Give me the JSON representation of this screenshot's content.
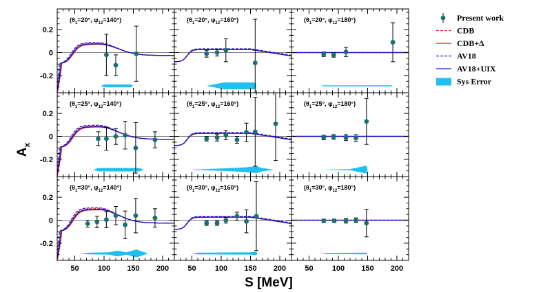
{
  "chart_data": {
    "type": "scatter",
    "xlabel": "S [MeV]",
    "ylabel": "A",
    "ylabel_subscript": "x",
    "xlim": [
      20,
      220
    ],
    "ylim": [
      -0.35,
      0.38
    ],
    "x_ticks": [
      50,
      100,
      150,
      200
    ],
    "y_ticks": [
      -0.2,
      0,
      0.2
    ],
    "x_tick_labels": [
      "50",
      "100",
      "150",
      "200"
    ],
    "y_tick_labels": [
      "-0.2",
      "0",
      "0.2"
    ],
    "legend": [
      {
        "name": "Present work",
        "style": "marker",
        "color": "#1a7070"
      },
      {
        "name": "CDB",
        "style": "dashed",
        "color": "#e02020"
      },
      {
        "name": "CDB+Δ",
        "style": "solid",
        "color": "#e02020"
      },
      {
        "name": "AV18",
        "style": "dashed",
        "color": "#1a1acc"
      },
      {
        "name": "AV18+UIX",
        "style": "solid",
        "color": "#1a1acc"
      },
      {
        "name": "Sys Error",
        "style": "fill",
        "color": "#1ec0f0"
      }
    ],
    "panels": [
      {
        "row": 0,
        "col": 0,
        "theta": "20",
        "phi": "140",
        "label_pre": "(θ",
        "label_mid": "=20°, φ",
        "label_post": "=140°)",
        "points": [
          {
            "x": 104,
            "y": -0.02,
            "err": 0.18
          },
          {
            "x": 120,
            "y": -0.11,
            "err": 0.09
          },
          {
            "x": 155,
            "y": -0.01,
            "err": 0.24
          }
        ],
        "sys": [
          [
            95,
            0.0
          ],
          [
            100,
            0.025
          ],
          [
            145,
            0.025
          ],
          [
            150,
            0.0
          ]
        ],
        "curves": {
          "type": "hump",
          "amp": 0.08
        }
      },
      {
        "row": 0,
        "col": 1,
        "theta": "20",
        "phi": "160",
        "label_pre": "(θ",
        "label_mid": "=20°, φ",
        "label_post": "=160°)",
        "points": [
          {
            "x": 75,
            "y": -0.01,
            "err": 0.03
          },
          {
            "x": 93,
            "y": 0.0,
            "err": 0.03
          },
          {
            "x": 108,
            "y": 0.02,
            "err": 0.1
          },
          {
            "x": 158,
            "y": -0.09,
            "err": 0.38
          }
        ],
        "sys": [
          [
            75,
            0.0
          ],
          [
            80,
            0.01
          ],
          [
            105,
            0.06
          ],
          [
            150,
            0.06
          ],
          [
            158,
            0.06
          ],
          [
            160,
            0.0
          ]
        ],
        "curves": {
          "type": "flat",
          "amp": 0.03
        }
      },
      {
        "row": 0,
        "col": 2,
        "theta": "20",
        "phi": "180",
        "label_pre": "(θ",
        "label_mid": "=20°, φ",
        "label_post": "=180°)",
        "points": [
          {
            "x": 75,
            "y": -0.015,
            "err": 0.02
          },
          {
            "x": 92,
            "y": -0.02,
            "err": 0.02
          },
          {
            "x": 113,
            "y": 0.005,
            "err": 0.04
          },
          {
            "x": 193,
            "y": 0.09,
            "err": 0.17
          }
        ],
        "sys": [
          [
            70,
            0.0
          ],
          [
            75,
            0.008
          ],
          [
            190,
            0.01
          ],
          [
            193,
            0.0
          ]
        ],
        "curves": {
          "type": "zero",
          "amp": 0.0
        }
      },
      {
        "row": 1,
        "col": 0,
        "theta": "25",
        "phi": "140",
        "label_pre": "(θ",
        "label_mid": "=25°, φ",
        "label_post": "=140°)",
        "points": [
          {
            "x": 90,
            "y": -0.02,
            "err": 0.06
          },
          {
            "x": 104,
            "y": -0.02,
            "err": 0.1
          },
          {
            "x": 120,
            "y": 0.0,
            "err": 0.07
          },
          {
            "x": 136,
            "y": 0.01,
            "err": 0.12
          },
          {
            "x": 154,
            "y": -0.1,
            "err": 0.22
          },
          {
            "x": 187,
            "y": -0.03,
            "err": 0.07
          }
        ],
        "sys": [
          [
            82,
            0.0
          ],
          [
            90,
            0.03
          ],
          [
            160,
            0.03
          ],
          [
            168,
            0.0
          ]
        ],
        "curves": {
          "type": "hump",
          "amp": 0.09
        }
      },
      {
        "row": 1,
        "col": 1,
        "theta": "25",
        "phi": "160",
        "label_pre": "(θ",
        "label_mid": "=25°, φ",
        "label_post": "=160°)",
        "points": [
          {
            "x": 75,
            "y": -0.02,
            "err": 0.02
          },
          {
            "x": 93,
            "y": -0.01,
            "err": 0.03
          },
          {
            "x": 108,
            "y": 0.01,
            "err": 0.04
          },
          {
            "x": 127,
            "y": -0.03,
            "err": 0.03
          },
          {
            "x": 143,
            "y": 0.035,
            "err": 0.08
          },
          {
            "x": 158,
            "y": 0.04,
            "err": 0.3
          },
          {
            "x": 193,
            "y": 0.11,
            "err": 0.32
          }
        ],
        "sys": [
          [
            48,
            0.0
          ],
          [
            100,
            0.02
          ],
          [
            140,
            0.04
          ],
          [
            160,
            0.06
          ],
          [
            170,
            0.03
          ],
          [
            190,
            0.0
          ]
        ],
        "curves": {
          "type": "flat",
          "amp": 0.03
        }
      },
      {
        "row": 1,
        "col": 2,
        "theta": "25",
        "phi": "180",
        "label_pre": "(θ",
        "label_mid": "=25°, φ",
        "label_post": "=180°)",
        "points": [
          {
            "x": 75,
            "y": -0.01,
            "err": 0.02
          },
          {
            "x": 92,
            "y": -0.005,
            "err": 0.02
          },
          {
            "x": 113,
            "y": -0.01,
            "err": 0.025
          },
          {
            "x": 130,
            "y": -0.015,
            "err": 0.03
          },
          {
            "x": 148,
            "y": 0.13,
            "err": 0.2
          }
        ],
        "sys": [
          [
            70,
            0.0
          ],
          [
            120,
            0.01
          ],
          [
            148,
            0.07
          ],
          [
            150,
            0.0
          ]
        ],
        "curves": {
          "type": "zero",
          "amp": 0.0
        }
      },
      {
        "row": 2,
        "col": 0,
        "theta": "30",
        "phi": "140",
        "label_pre": "(θ",
        "label_mid": "=30°, φ",
        "label_post": "=140°)",
        "points": [
          {
            "x": 72,
            "y": -0.03,
            "err": 0.03
          },
          {
            "x": 88,
            "y": -0.015,
            "err": 0.05
          },
          {
            "x": 104,
            "y": 0.005,
            "err": 0.07
          },
          {
            "x": 120,
            "y": 0.04,
            "err": 0.08
          },
          {
            "x": 136,
            "y": -0.04,
            "err": 0.12
          },
          {
            "x": 154,
            "y": 0.04,
            "err": 0.15
          },
          {
            "x": 187,
            "y": 0.02,
            "err": 0.08
          }
        ],
        "sys": [
          [
            58,
            0.0
          ],
          [
            75,
            0.015
          ],
          [
            108,
            0.02
          ],
          [
            123,
            0.05
          ],
          [
            138,
            0.02
          ],
          [
            155,
            0.07
          ],
          [
            175,
            0.0
          ]
        ],
        "curves": {
          "type": "hump",
          "amp": 0.1
        }
      },
      {
        "row": 2,
        "col": 1,
        "theta": "30",
        "phi": "160",
        "label_pre": "(θ",
        "label_mid": "=30°, φ",
        "label_post": "=160°)",
        "points": [
          {
            "x": 75,
            "y": -0.025,
            "err": 0.02
          },
          {
            "x": 93,
            "y": -0.025,
            "err": 0.02
          },
          {
            "x": 108,
            "y": 0.0,
            "err": 0.025
          },
          {
            "x": 127,
            "y": 0.035,
            "err": 0.035
          },
          {
            "x": 143,
            "y": -0.01,
            "err": 0.1
          },
          {
            "x": 160,
            "y": 0.035,
            "err": 0.3
          }
        ],
        "sys": [
          [
            50,
            0.0
          ],
          [
            60,
            0.015
          ],
          [
            150,
            0.02
          ],
          [
            160,
            0.03
          ],
          [
            162,
            0.0
          ]
        ],
        "curves": {
          "type": "flat",
          "amp": 0.03
        }
      },
      {
        "row": 2,
        "col": 2,
        "theta": "30",
        "phi": "180",
        "label_pre": "(θ",
        "label_mid": "=30°, φ",
        "label_post": "=180°)",
        "points": [
          {
            "x": 75,
            "y": -0.005,
            "err": 0.015
          },
          {
            "x": 93,
            "y": -0.005,
            "err": 0.015
          },
          {
            "x": 113,
            "y": -0.005,
            "err": 0.02
          },
          {
            "x": 130,
            "y": 0.0,
            "err": 0.02
          },
          {
            "x": 148,
            "y": -0.025,
            "err": 0.12
          }
        ],
        "sys": [
          [
            70,
            0.0
          ],
          [
            80,
            0.01
          ],
          [
            148,
            0.015
          ],
          [
            150,
            0.0
          ]
        ],
        "curves": {
          "type": "zero",
          "amp": 0.0
        }
      }
    ]
  }
}
